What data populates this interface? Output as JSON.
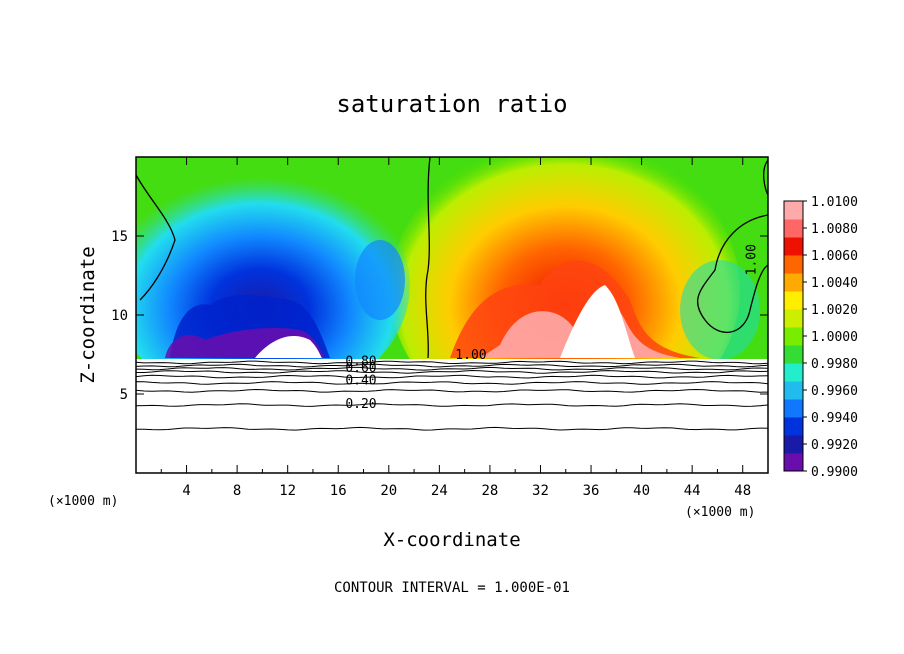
{
  "chart_data": {
    "type": "heatmap",
    "title": "saturation ratio",
    "xlabel": "X-coordinate",
    "ylabel": "Z-coordinate",
    "x_unit": "(×1000 m)",
    "z_unit": "(×1000 m)",
    "footnote": "CONTOUR INTERVAL = 1.000E-01",
    "xlim": [
      0,
      50
    ],
    "ylim": [
      0,
      20
    ],
    "x_ticks": [
      4,
      8,
      12,
      16,
      20,
      24,
      28,
      32,
      36,
      40,
      44,
      48
    ],
    "y_ticks": [
      5,
      10,
      15
    ],
    "colorbar": {
      "min": 0.99,
      "max": 1.01,
      "ticks": [
        "1.0100",
        "1.0080",
        "1.0060",
        "1.0040",
        "1.0020",
        "1.0000",
        "0.9980",
        "0.9960",
        "0.9940",
        "0.9920",
        "0.9900"
      ],
      "colors": [
        "#6a0dad",
        "#1a1aa8",
        "#0033dd",
        "#1177ff",
        "#22bbee",
        "#22eecc",
        "#33dd33",
        "#77ee00",
        "#ccee00",
        "#ffee00",
        "#ffaa00",
        "#ff6600",
        "#ee1100",
        "#ff6666",
        "#ffaaaa"
      ]
    },
    "contour_labels": [
      {
        "text": "1.00",
        "x": 26.5,
        "z": 7.2
      },
      {
        "text": "0.80",
        "x": 17.8,
        "z": 6.8
      },
      {
        "text": "0.60",
        "x": 17.8,
        "z": 6.4
      },
      {
        "text": "0.40",
        "x": 17.8,
        "z": 5.6
      },
      {
        "text": "0.20",
        "x": 17.8,
        "z": 4.1
      },
      {
        "text": "1.00",
        "x": 49.0,
        "z": 13.5
      }
    ],
    "low_level_contours_z": [
      7.0,
      6.8,
      6.6,
      6.4,
      6.1,
      5.7,
      5.2,
      4.3,
      2.8
    ]
  }
}
